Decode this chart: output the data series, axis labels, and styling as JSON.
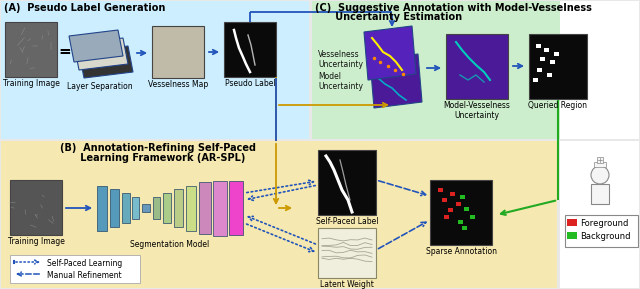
{
  "bg_color": "#f0f0f0",
  "panel_A_bg": "#cceeff",
  "panel_C_bg": "#cceecc",
  "panel_B_bg": "#f5e8b0",
  "panel_A_title": "(A)  Pseudo Label Generation",
  "panel_B_title_1": "(B)  Annotation-Refining Self-Paced",
  "panel_B_title_2": "      Learning Framework (AR-SPL)",
  "panel_C_title_1": "(C)  Suggestive Annotation with Model-Vesselness",
  "panel_C_title_2": "      Uncertainty Estimation",
  "labels": {
    "training_image": "Training Image",
    "layer_sep": "Layer Separation",
    "vesselness_map": "Vesselness Map",
    "pseudo_label": "Pseudo Label",
    "vesselness_uncertainty": "Vesselness\nUncertainty",
    "model_uncertainty": "Model\nUncertainty",
    "model_vesselness": "Model-Vesselness\nUncertainty",
    "queried_region": "Queried Region",
    "training_image_b": "Training Image",
    "seg_model": "Segmentation Model",
    "self_paced_label": "Self-Paced Label",
    "latent_weight": "Latent Weight",
    "sparse_annotation": "Sparse Annotation",
    "foreground": "Foreground",
    "background": "Background",
    "self_paced_learning": "Self-Paced Learning",
    "manual_refinement": "Manual Refinement"
  },
  "blue": "#2255bb",
  "orange": "#cc9900",
  "green": "#22aa22",
  "red_leg": "#dd2222",
  "green_leg": "#22bb22"
}
